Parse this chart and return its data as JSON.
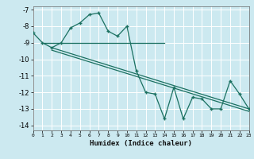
{
  "xlabel": "Humidex (Indice chaleur)",
  "xlim": [
    0,
    23
  ],
  "ylim": [
    -14.3,
    -6.8
  ],
  "yticks": [
    -14,
    -13,
    -12,
    -11,
    -10,
    -9,
    -8,
    -7
  ],
  "xticks": [
    0,
    1,
    2,
    3,
    4,
    5,
    6,
    7,
    8,
    9,
    10,
    11,
    12,
    13,
    14,
    15,
    16,
    17,
    18,
    19,
    20,
    21,
    22,
    23
  ],
  "bg_color": "#cce9f0",
  "line_color": "#1a7060",
  "grid_color": "#ffffff",
  "main_x": [
    0,
    1,
    2,
    3,
    4,
    5,
    6,
    7,
    8,
    9,
    10,
    11,
    12,
    13,
    14,
    15,
    16,
    17,
    18,
    19,
    20,
    21,
    22,
    23
  ],
  "main_y": [
    -8.4,
    -9.0,
    -9.3,
    -9.0,
    -8.1,
    -7.8,
    -7.3,
    -7.2,
    -8.3,
    -8.6,
    -8.0,
    -10.7,
    -12.0,
    -12.1,
    -13.6,
    -11.7,
    -13.6,
    -12.3,
    -12.4,
    -13.0,
    -13.0,
    -11.3,
    -12.1,
    -13.0
  ],
  "trend1_x": [
    1,
    14
  ],
  "trend1_y": [
    -9.0,
    -9.0
  ],
  "trend2_x": [
    2,
    23
  ],
  "trend2_y": [
    -9.3,
    -13.0
  ],
  "trend3_x": [
    2,
    23
  ],
  "trend3_y": [
    -9.45,
    -13.15
  ]
}
